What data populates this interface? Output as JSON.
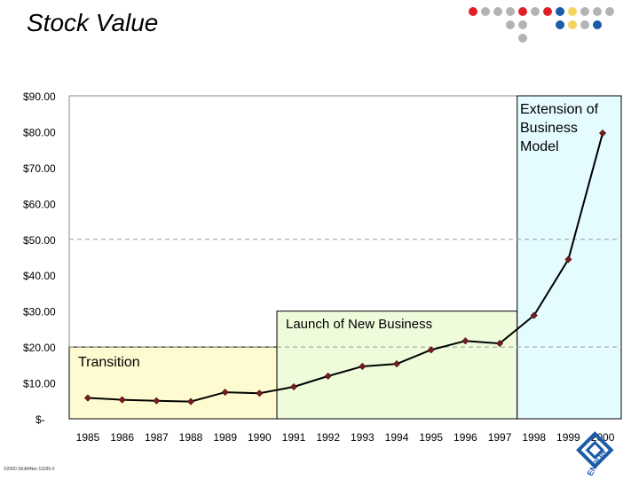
{
  "title": "Stock Value",
  "footer": "©2000 SKARNer-11039-3",
  "decor_dots": [
    [
      "#e02027",
      "#b3b3b3",
      "#b3b3b3",
      "#b3b3b3",
      "#e02027",
      "#b3b3b3",
      "#e02027",
      "#1a5ca8",
      "#f6d35a",
      "#b3b3b3",
      "#b3b3b3",
      "#b3b3b3"
    ],
    [
      "#b3b3b3",
      "#b3b3b3",
      "#1a5ca8",
      "#f6d35a",
      "#b3b3b3",
      "#1a5ca8"
    ],
    [
      "#b3b3b3"
    ]
  ],
  "logo": {
    "text": "ENRON",
    "color": "#1a5ca8"
  },
  "chart_data": {
    "type": "line",
    "title": "Stock Value",
    "categories": [
      "1985",
      "1986",
      "1987",
      "1988",
      "1989",
      "1990",
      "1991",
      "1992",
      "1993",
      "1994",
      "1995",
      "1996",
      "1997",
      "1998",
      "1999",
      "2000"
    ],
    "series": [
      {
        "values": [
          5.8,
          5.3,
          5.0,
          4.8,
          7.4,
          7.1,
          8.9,
          11.9,
          14.6,
          15.3,
          19.2,
          21.7,
          21.0,
          28.8,
          44.4,
          79.6
        ]
      }
    ],
    "ylim": [
      0,
      90
    ],
    "yticks": [
      0,
      10,
      20,
      30,
      40,
      50,
      60,
      70,
      80,
      90
    ],
    "ytick_labels": [
      "$-",
      "$10.00",
      "$20.00",
      "$30.00",
      "$40.00",
      "$50.00",
      "$60.00",
      "$70.00",
      "$80.00",
      "$90.00"
    ],
    "xlabel": "",
    "ylabel": "",
    "grid": "dashed at $20.00 and $50.00",
    "line_color": "#000000",
    "marker_color": "#7a1d1d",
    "phases": [
      {
        "label": "Transition",
        "from": "1985",
        "to": "1991",
        "top": 20,
        "color": "#fffbd0"
      },
      {
        "label": "Launch of New Business",
        "from": "1991",
        "to": "1998",
        "top": 30,
        "color": "#eefcdc"
      },
      {
        "label": "Extension of Business Model",
        "label_lines": [
          "Extension of",
          "Business",
          "Model"
        ],
        "from": "1998",
        "to": "2000",
        "top": 90,
        "color": "#e4fbff"
      }
    ]
  }
}
